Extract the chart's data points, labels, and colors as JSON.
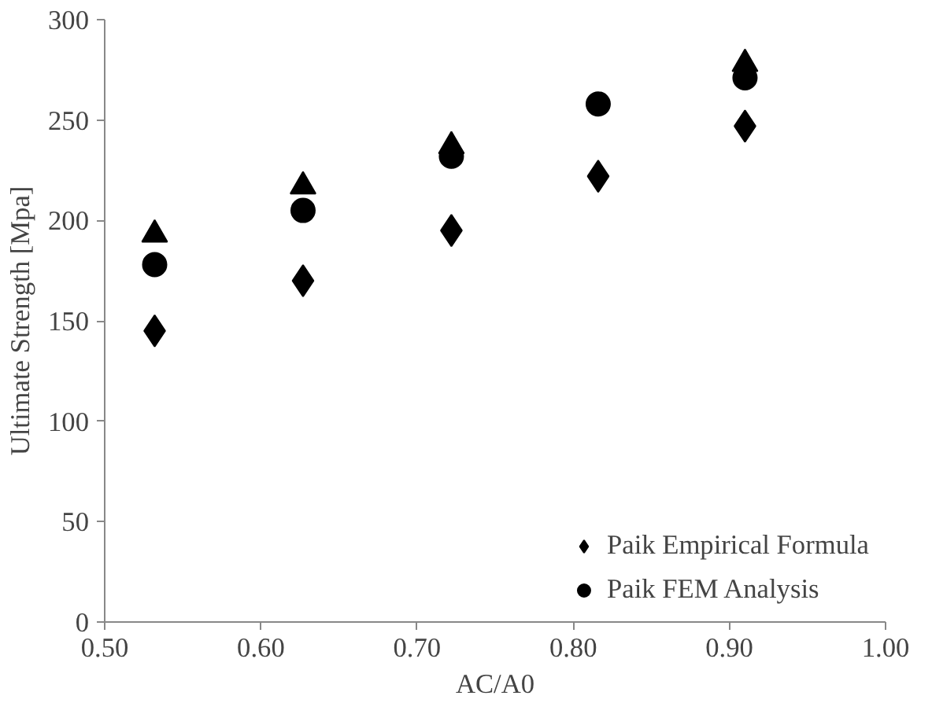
{
  "chart_data": {
    "type": "scatter",
    "xlabel": "AC/A0",
    "ylabel": "Ultimate Strength [Mpa]",
    "x": [
      0.532,
      0.627,
      0.722,
      0.816,
      0.91
    ],
    "series": [
      {
        "name": "Paik Empirical Formula",
        "color": "#000000",
        "marker": "diamond",
        "values": [
          145,
          170,
          195,
          222,
          247
        ]
      },
      {
        "name": "Paik FEM Analysis",
        "color": "#000000",
        "marker": "circle",
        "values": [
          178,
          205,
          232,
          258,
          271
        ]
      },
      {
        "color": "#000000",
        "marker": "triangle",
        "values": [
          193,
          217,
          237,
          null,
          278
        ]
      }
    ],
    "xlim": [
      0.5,
      1.0
    ],
    "xticks": [
      {
        "value": 0.5,
        "label": "0.50"
      },
      {
        "value": 0.6,
        "label": "0.60"
      },
      {
        "value": 0.7,
        "label": "0.70"
      },
      {
        "value": 0.8,
        "label": "0.80"
      },
      {
        "value": 0.9,
        "label": "0.90"
      },
      {
        "value": 1.0,
        "label": "1.00"
      }
    ],
    "ylim": [
      0,
      300
    ],
    "yticks": [
      0,
      50,
      100,
      150,
      200,
      250,
      300
    ],
    "grid": false,
    "legend": "bottom right"
  }
}
